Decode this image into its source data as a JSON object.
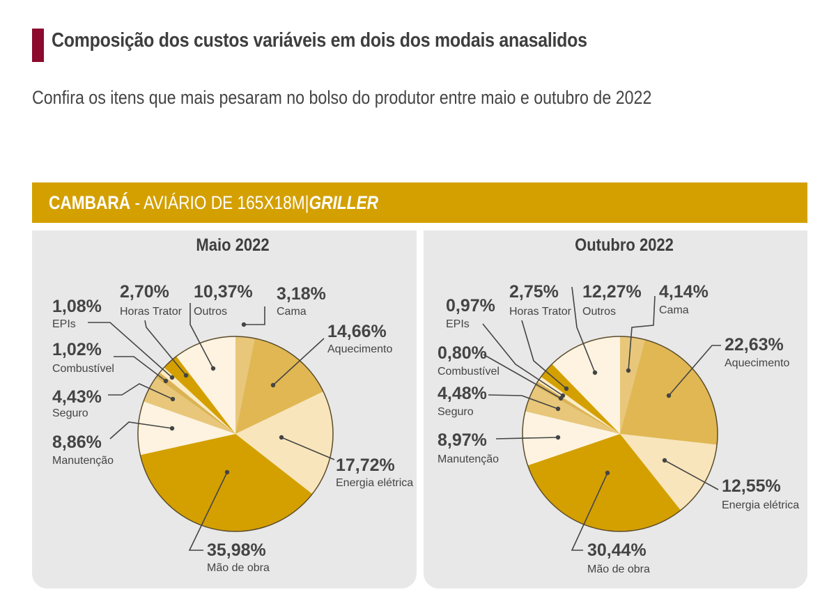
{
  "header": {
    "title": "Composição dos custos variáveis em dois dos modais anasalidos",
    "subtitle": "Confira os itens que mais pesaram no bolso do produtor entre maio e outubro de 2022",
    "accent_color": "#8b0a2e"
  },
  "banner": {
    "location": "CAMBARÁ",
    "separator": " - ",
    "description": "AVIÁRIO DE 165X18M",
    "divider": "|",
    "type": "GRILLER",
    "color": "#d4a000"
  },
  "chart_data": [
    {
      "type": "pie",
      "title": "Maio 2022",
      "start": "12 o'clock",
      "direction": "clockwise",
      "slices": [
        {
          "label": "Cama",
          "value": 3.18,
          "display": "3,18%",
          "color": "#e8c77a"
        },
        {
          "label": "Aquecimento",
          "value": 14.66,
          "display": "14,66%",
          "color": "#e0b752"
        },
        {
          "label": "Energia elétrica",
          "value": 17.72,
          "display": "17,72%",
          "color": "#f8e5bb"
        },
        {
          "label": "Mão de obra",
          "value": 35.98,
          "display": "35,98%",
          "color": "#d4a000"
        },
        {
          "label": "Manutenção",
          "value": 8.86,
          "display": "8,86%",
          "color": "#fdf3e0"
        },
        {
          "label": "Seguro",
          "value": 4.43,
          "display": "4,43%",
          "color": "#e8c77a"
        },
        {
          "label": "Combustível",
          "value": 1.02,
          "display": "1,02%",
          "color": "#dbb354"
        },
        {
          "label": "EPIs",
          "value": 1.08,
          "display": "1,08%",
          "color": "#fbecc8"
        },
        {
          "label": "Horas Trator",
          "value": 2.7,
          "display": "2,70%",
          "color": "#d4a000"
        },
        {
          "label": "Outros",
          "value": 10.37,
          "display": "10,37%",
          "color": "#fdf3e0"
        }
      ]
    },
    {
      "type": "pie",
      "title": "Outubro 2022",
      "start": "12 o'clock",
      "direction": "clockwise",
      "slices": [
        {
          "label": "Cama",
          "value": 4.14,
          "display": "4,14%",
          "color": "#e8c77a"
        },
        {
          "label": "Aquecimento",
          "value": 22.63,
          "display": "22,63%",
          "color": "#e0b752"
        },
        {
          "label": "Energia elétrica",
          "value": 12.55,
          "display": "12,55%",
          "color": "#f8e5bb"
        },
        {
          "label": "Mão de obra",
          "value": 30.44,
          "display": "30,44%",
          "color": "#d4a000"
        },
        {
          "label": "Manutenção",
          "value": 8.97,
          "display": "8,97%",
          "color": "#fdf3e0"
        },
        {
          "label": "Seguro",
          "value": 4.48,
          "display": "4,48%",
          "color": "#e8c77a"
        },
        {
          "label": "Combustível",
          "value": 0.8,
          "display": "0,80%",
          "color": "#dbb354"
        },
        {
          "label": "EPIs",
          "value": 0.97,
          "display": "0,97%",
          "color": "#fbecc8"
        },
        {
          "label": "Horas Trator",
          "value": 2.75,
          "display": "2,75%",
          "color": "#d4a000"
        },
        {
          "label": "Outros",
          "value": 12.27,
          "display": "12,27%",
          "color": "#fdf3e0"
        }
      ]
    }
  ]
}
